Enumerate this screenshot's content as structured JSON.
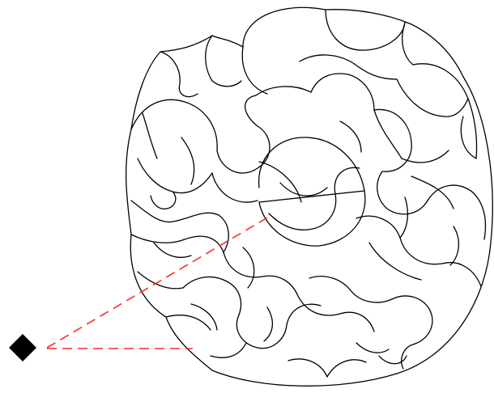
{
  "scene": {
    "background_color": "#ffffff",
    "line_color": "#000000",
    "ray_color": "#ff2a2a",
    "marker_color": "#000000",
    "marker_shape": "diamond-icon",
    "ray_count": 2,
    "ray_style": "dashed"
  }
}
